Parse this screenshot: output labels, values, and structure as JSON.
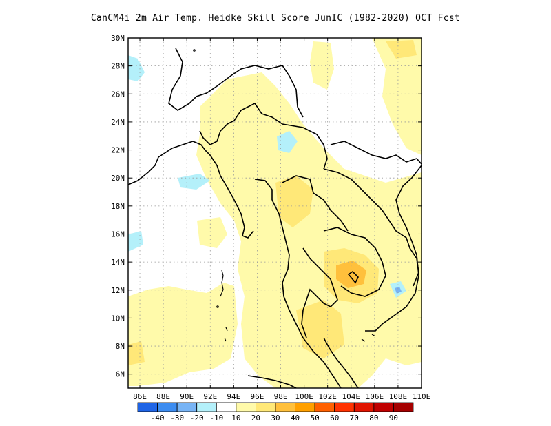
{
  "title": "CanCM4i  2m Air Temp. Heidke Skill Score JunIC (1982-2020) OCT Fcst",
  "lat_labels": [
    "30N",
    "28N",
    "26N",
    "24N",
    "22N",
    "20N",
    "18N",
    "16N",
    "14N",
    "12N",
    "10N",
    "8N",
    "6N"
  ],
  "lon_labels": [
    "86E",
    "88E",
    "90E",
    "92E",
    "94E",
    "96E",
    "98E",
    "100E",
    "102E",
    "104E",
    "106E",
    "108E",
    "110E"
  ],
  "colorbar": {
    "labels": [
      "-40",
      "-30",
      "-20",
      "-10",
      "10",
      "20",
      "30",
      "40",
      "50",
      "60",
      "70",
      "80",
      "90"
    ],
    "colors": [
      "#1e64e6",
      "#3c8cf0",
      "#78b4f5",
      "#b4f0fa",
      "#ffffff",
      "#fffaaa",
      "#ffe878",
      "#ffc03c",
      "#ffa000",
      "#ff6000",
      "#ff3200",
      "#e11400",
      "#c00000",
      "#a50000"
    ]
  }
}
